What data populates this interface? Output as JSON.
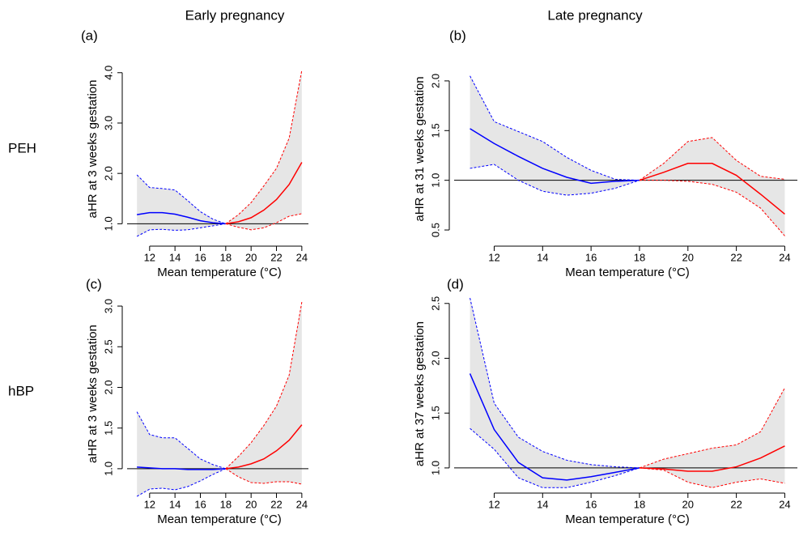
{
  "columns": [
    "Early pregnancy",
    "Late pregnancy"
  ],
  "rows": [
    "PEH",
    "hBP"
  ],
  "chart_data": [
    {
      "type": "line",
      "panel_label": "(a)",
      "xlabel": "Mean temperature (°C)",
      "ylabel": "aHR at 3 weeks gestation",
      "x": [
        11,
        12,
        13,
        14,
        15,
        16,
        17,
        18,
        19,
        20,
        21,
        22,
        23,
        24
      ],
      "values": [
        1.18,
        1.22,
        1.22,
        1.19,
        1.13,
        1.06,
        1.02,
        1.0,
        1.04,
        1.12,
        1.27,
        1.48,
        1.78,
        2.22
      ],
      "lower": [
        0.75,
        0.88,
        0.89,
        0.87,
        0.88,
        0.92,
        0.96,
        1.0,
        0.93,
        0.88,
        0.92,
        1.02,
        1.15,
        1.2
      ],
      "upper": [
        1.97,
        1.72,
        1.7,
        1.67,
        1.46,
        1.24,
        1.09,
        1.0,
        1.18,
        1.42,
        1.75,
        2.1,
        2.7,
        4.05
      ],
      "split_x": 18,
      "colors": [
        "#0000ff",
        "#ff0000"
      ],
      "band_color": "#e6e6e6",
      "hline": 1,
      "xlim": [
        10.48,
        24.52
      ],
      "xticks": [
        12,
        14,
        16,
        18,
        20,
        22,
        24
      ],
      "ylim": [
        0.62,
        4.35
      ],
      "yticks": [
        {
          "value": 1,
          "label": "1.0"
        },
        {
          "value": 2,
          "label": "2.0"
        },
        {
          "value": 3,
          "label": "3.0"
        },
        {
          "value": 4,
          "label": "4.0"
        }
      ]
    },
    {
      "type": "line",
      "panel_label": "(b)",
      "xlabel": "Mean temperature (°C)",
      "ylabel": "aHR at 31 weeks gestation",
      "x": [
        11,
        12,
        13,
        14,
        15,
        16,
        17,
        18,
        19,
        20,
        21,
        22,
        23,
        24
      ],
      "values": [
        1.52,
        1.37,
        1.24,
        1.12,
        1.03,
        0.97,
        0.99,
        1.0,
        1.08,
        1.17,
        1.17,
        1.05,
        0.86,
        0.66
      ],
      "lower": [
        1.12,
        1.16,
        1.0,
        0.89,
        0.85,
        0.87,
        0.92,
        1.0,
        1.0,
        0.99,
        0.96,
        0.88,
        0.72,
        0.44
      ],
      "upper": [
        2.05,
        1.59,
        1.49,
        1.39,
        1.23,
        1.1,
        1.01,
        1.0,
        1.17,
        1.39,
        1.43,
        1.2,
        1.04,
        1.01
      ],
      "split_x": 18,
      "colors": [
        "#0000ff",
        "#ff0000"
      ],
      "band_color": "#e6e6e6",
      "hline": 1,
      "xlim": [
        10.48,
        24.52
      ],
      "xticks": [
        12,
        14,
        16,
        18,
        20,
        22,
        24
      ],
      "ylim": [
        0.37,
        2.26
      ],
      "yticks": [
        0.5,
        {
          "value": 1,
          "label": "1.0"
        },
        1.5,
        {
          "value": 2,
          "label": "2.0"
        }
      ]
    },
    {
      "type": "line",
      "panel_label": "(c)",
      "xlabel": "Mean temperature (°C)",
      "ylabel": "aHR at 3 weeks gestation",
      "x": [
        11,
        12,
        13,
        14,
        15,
        16,
        17,
        18,
        19,
        20,
        21,
        22,
        23,
        24
      ],
      "values": [
        1.02,
        1.01,
        1.0,
        1.0,
        0.99,
        0.99,
        0.99,
        1.0,
        1.02,
        1.06,
        1.12,
        1.22,
        1.35,
        1.54
      ],
      "lower": [
        0.66,
        0.75,
        0.76,
        0.74,
        0.78,
        0.85,
        0.93,
        1.0,
        0.9,
        0.83,
        0.82,
        0.84,
        0.84,
        0.81
      ],
      "upper": [
        1.7,
        1.42,
        1.38,
        1.38,
        1.25,
        1.12,
        1.05,
        1.0,
        1.15,
        1.32,
        1.53,
        1.77,
        2.15,
        3.05
      ],
      "split_x": 18,
      "colors": [
        "#0000ff",
        "#ff0000"
      ],
      "band_color": "#e6e6e6",
      "hline": 1,
      "xlim": [
        10.48,
        24.52
      ],
      "xticks": [
        12,
        14,
        16,
        18,
        20,
        22,
        24
      ],
      "ylim": [
        0.74,
        3.1
      ],
      "yticks": [
        {
          "value": 1,
          "label": "1.0"
        },
        1.5,
        {
          "value": 2,
          "label": "2.0"
        },
        2.5,
        {
          "value": 3,
          "label": "3.0"
        }
      ]
    },
    {
      "type": "line",
      "panel_label": "(d)",
      "xlabel": "Mean temperature (°C)",
      "ylabel": "aHR at 37 weeks gestation",
      "x": [
        11,
        12,
        13,
        14,
        15,
        16,
        17,
        18,
        19,
        20,
        21,
        22,
        23,
        24
      ],
      "values": [
        1.86,
        1.35,
        1.05,
        0.91,
        0.89,
        0.92,
        0.96,
        1.0,
        0.99,
        0.97,
        0.97,
        1.01,
        1.09,
        1.2
      ],
      "lower": [
        1.36,
        1.17,
        0.91,
        0.82,
        0.82,
        0.87,
        0.93,
        1.0,
        0.98,
        0.87,
        0.82,
        0.87,
        0.9,
        0.86
      ],
      "upper": [
        2.55,
        1.59,
        1.28,
        1.15,
        1.07,
        1.03,
        1.01,
        1.0,
        1.08,
        1.13,
        1.18,
        1.21,
        1.33,
        1.73
      ],
      "split_x": 18,
      "colors": [
        "#0000ff",
        "#ff0000"
      ],
      "band_color": "#e6e6e6",
      "hline": 1,
      "xlim": [
        10.48,
        24.52
      ],
      "xticks": [
        12,
        14,
        16,
        18,
        20,
        22,
        24
      ],
      "ylim": [
        0.8,
        2.55
      ],
      "yticks": [
        {
          "value": 1,
          "label": "1.0"
        },
        1.5,
        {
          "value": 2,
          "label": "2.0"
        },
        2.5
      ]
    }
  ]
}
